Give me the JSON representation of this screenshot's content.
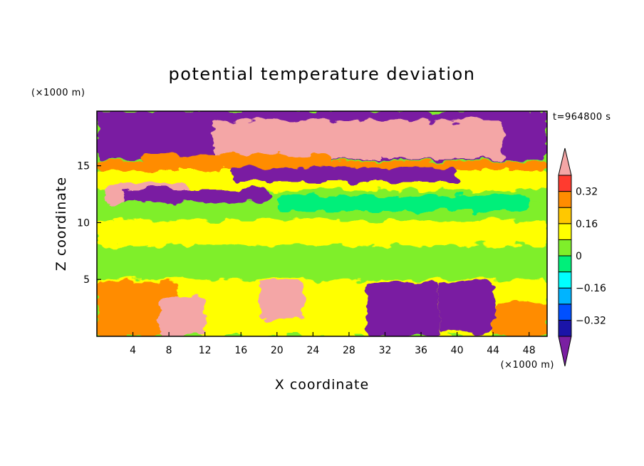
{
  "chart_data": {
    "type": "heatmap",
    "title": "potential temperature deviation",
    "xlabel": "X coordinate",
    "ylabel": "Z coordinate",
    "x_unit": "(×1000 m)",
    "y_unit": "(×1000 m)",
    "time_label": "t=964800 s",
    "xlim": [
      0,
      50
    ],
    "ylim": [
      0,
      19.8
    ],
    "x_ticks": [
      4,
      8,
      12,
      16,
      20,
      24,
      28,
      32,
      36,
      40,
      44,
      48
    ],
    "y_ticks": [
      5,
      10,
      15
    ],
    "colorbar": {
      "levels": [
        -0.4,
        -0.32,
        -0.24,
        -0.16,
        -0.08,
        0,
        0.08,
        0.16,
        0.24,
        0.32,
        0.4
      ],
      "labels": [
        "0.32",
        "0.16",
        "0",
        "−0.16",
        "−0.32"
      ],
      "label_values": [
        0.32,
        0.16,
        0,
        -0.16,
        -0.32
      ],
      "colors": [
        "#7a1fa2",
        "#1a14a8",
        "#0050ff",
        "#00b4ff",
        "#00ffff",
        "#00ef7a",
        "#7fef2a",
        "#ffff00",
        "#ffc800",
        "#ff8c00",
        "#ff3b2f",
        "#f4a6a6"
      ]
    },
    "regions": [
      {
        "x": [
          0,
          50
        ],
        "z": [
          15.5,
          19.8
        ],
        "value": -0.45
      },
      {
        "x": [
          13,
          45
        ],
        "z": [
          15.6,
          19.0
        ],
        "value": 0.45
      },
      {
        "x": [
          5,
          26
        ],
        "z": [
          15.0,
          16.0
        ],
        "value": 0.3
      },
      {
        "x": [
          0,
          50
        ],
        "z": [
          14.6,
          15.4
        ],
        "value": 0.3
      },
      {
        "x": [
          0,
          50
        ],
        "z": [
          12.8,
          14.6
        ],
        "value": 0.12
      },
      {
        "x": [
          1,
          10
        ],
        "z": [
          10.8,
          13.5
        ],
        "value": 0.45
      },
      {
        "x": [
          3,
          19
        ],
        "z": [
          11.2,
          13.0
        ],
        "value": -0.45
      },
      {
        "x": [
          15,
          40
        ],
        "z": [
          13.6,
          14.8
        ],
        "value": -0.45
      },
      {
        "x": [
          0,
          50
        ],
        "z": [
          10.2,
          11.8
        ],
        "value": 0.06
      },
      {
        "x": [
          20,
          48
        ],
        "z": [
          11.0,
          12.4
        ],
        "value": -0.02
      },
      {
        "x": [
          0,
          50
        ],
        "z": [
          8.0,
          10.2
        ],
        "value": 0.1
      },
      {
        "x": [
          0,
          50
        ],
        "z": [
          5.0,
          8.0
        ],
        "value": 0.02
      },
      {
        "x": [
          0,
          50
        ],
        "z": [
          0,
          5.0
        ],
        "value": 0.15
      },
      {
        "x": [
          0,
          9
        ],
        "z": [
          0,
          4.8
        ],
        "value": 0.3
      },
      {
        "x": [
          7,
          12
        ],
        "z": [
          0,
          3.5
        ],
        "value": 0.45
      },
      {
        "x": [
          18,
          23
        ],
        "z": [
          1.5,
          4.8
        ],
        "value": 0.45
      },
      {
        "x": [
          24,
          29
        ],
        "z": [
          0.3,
          3.0
        ],
        "value": 0.12
      },
      {
        "x": [
          30,
          38
        ],
        "z": [
          0,
          4.8
        ],
        "value": -0.45
      },
      {
        "x": [
          38,
          44
        ],
        "z": [
          0.3,
          4.8
        ],
        "value": -0.45
      },
      {
        "x": [
          44,
          50
        ],
        "z": [
          0,
          3.0
        ],
        "value": 0.3
      }
    ]
  }
}
